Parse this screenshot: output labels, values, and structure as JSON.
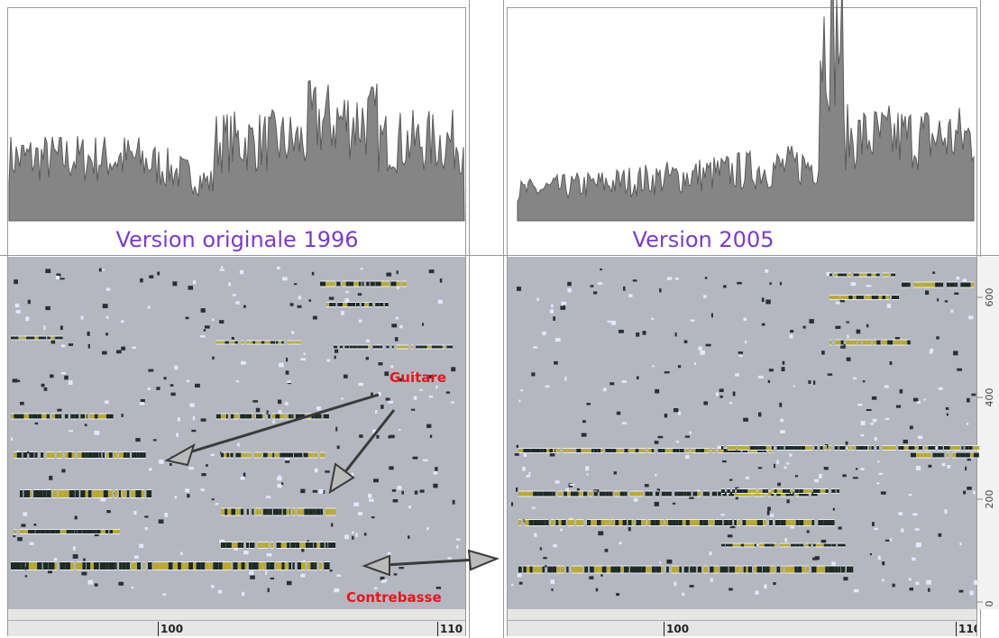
{
  "panels": [
    {
      "title": "Version originale 1996",
      "ruler": [
        "100",
        "110"
      ]
    },
    {
      "title": "Version 2005",
      "ruler": [
        "100",
        "110"
      ],
      "axis": [
        "600",
        "400",
        "200",
        "0"
      ]
    }
  ],
  "annotations": [
    "Guitare",
    "Contrebasse"
  ]
}
